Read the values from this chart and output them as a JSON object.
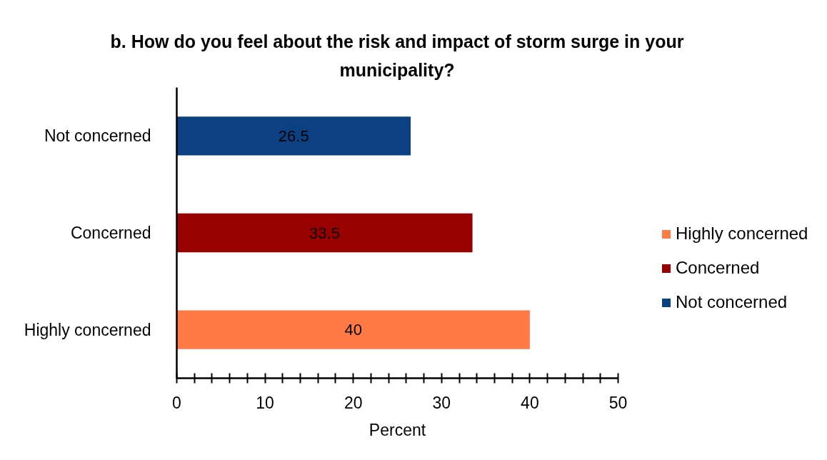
{
  "chart_data": {
    "type": "bar",
    "orientation": "horizontal",
    "title": "b. How do you feel about the risk and impact of storm surge in your municipality?",
    "xlabel": "Percent",
    "categories": [
      "Not concerned",
      "Concerned",
      "Highly concerned"
    ],
    "series": [
      {
        "name": "Highly concerned",
        "color": "#ff7a45",
        "values": [
          null,
          null,
          40
        ]
      },
      {
        "name": "Concerned",
        "color": "#990000",
        "values": [
          null,
          33.5,
          null
        ]
      },
      {
        "name": "Not concerned",
        "color": "#0b4182",
        "values": [
          26.5,
          null,
          null
        ]
      }
    ],
    "data_labels": true,
    "xlim": [
      0,
      50
    ],
    "xticks": [
      0,
      {
        "value": 2,
        "label": null
      },
      {
        "value": 4,
        "label": null
      },
      {
        "value": 6,
        "label": null
      },
      {
        "value": 8,
        "label": null
      },
      10,
      {
        "value": 12,
        "label": null
      },
      {
        "value": 14,
        "label": null
      },
      {
        "value": 16,
        "label": null
      },
      {
        "value": 18,
        "label": null
      },
      20,
      {
        "value": 22,
        "label": null
      },
      {
        "value": 24,
        "label": null
      },
      {
        "value": 26,
        "label": null
      },
      {
        "value": 28,
        "label": null
      },
      30,
      {
        "value": 32,
        "label": null
      },
      {
        "value": 34,
        "label": null
      },
      {
        "value": 36,
        "label": null
      },
      {
        "value": 38,
        "label": null
      },
      40,
      {
        "value": 42,
        "label": null
      },
      {
        "value": 44,
        "label": null
      },
      {
        "value": 46,
        "label": null
      },
      {
        "value": 48,
        "label": null
      },
      50
    ],
    "legend": "right"
  }
}
